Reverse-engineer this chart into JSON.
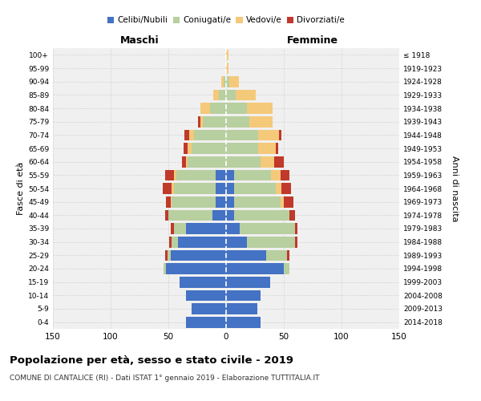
{
  "age_groups": [
    "0-4",
    "5-9",
    "10-14",
    "15-19",
    "20-24",
    "25-29",
    "30-34",
    "35-39",
    "40-44",
    "45-49",
    "50-54",
    "55-59",
    "60-64",
    "65-69",
    "70-74",
    "75-79",
    "80-84",
    "85-89",
    "90-94",
    "95-99",
    "100+"
  ],
  "birth_years": [
    "2014-2018",
    "2009-2013",
    "2004-2008",
    "1999-2003",
    "1994-1998",
    "1989-1993",
    "1984-1988",
    "1979-1983",
    "1974-1978",
    "1969-1973",
    "1964-1968",
    "1959-1963",
    "1954-1958",
    "1949-1953",
    "1944-1948",
    "1939-1943",
    "1934-1938",
    "1929-1933",
    "1924-1928",
    "1919-1923",
    "≤ 1918"
  ],
  "male": {
    "celibi": [
      35,
      30,
      35,
      40,
      52,
      48,
      42,
      35,
      12,
      9,
      9,
      9,
      0,
      0,
      0,
      0,
      0,
      0,
      0,
      0,
      0
    ],
    "coniugati": [
      0,
      0,
      0,
      0,
      2,
      3,
      5,
      10,
      38,
      38,
      36,
      34,
      33,
      30,
      28,
      20,
      14,
      6,
      2,
      0,
      0
    ],
    "vedovi": [
      0,
      0,
      0,
      0,
      0,
      0,
      0,
      0,
      0,
      1,
      2,
      2,
      2,
      3,
      4,
      2,
      8,
      5,
      2,
      0,
      0
    ],
    "divorziati": [
      0,
      0,
      0,
      0,
      0,
      2,
      2,
      3,
      3,
      4,
      8,
      8,
      3,
      4,
      4,
      2,
      0,
      0,
      0,
      0,
      0
    ]
  },
  "female": {
    "nubili": [
      30,
      27,
      30,
      38,
      50,
      35,
      18,
      12,
      7,
      7,
      7,
      7,
      0,
      0,
      0,
      0,
      0,
      0,
      0,
      0,
      0
    ],
    "coniugate": [
      0,
      0,
      0,
      0,
      5,
      18,
      42,
      48,
      48,
      40,
      36,
      32,
      30,
      28,
      28,
      20,
      18,
      8,
      3,
      0,
      0
    ],
    "vedove": [
      0,
      0,
      0,
      0,
      0,
      0,
      0,
      0,
      0,
      3,
      5,
      8,
      12,
      15,
      18,
      20,
      22,
      18,
      8,
      2,
      2
    ],
    "divorziate": [
      0,
      0,
      0,
      0,
      0,
      2,
      2,
      2,
      5,
      8,
      8,
      8,
      8,
      2,
      2,
      0,
      0,
      0,
      0,
      0,
      0
    ]
  },
  "colors": {
    "celibi": "#4472c4",
    "coniugati": "#b8cfa0",
    "vedovi": "#f5c97a",
    "divorziati": "#c0392b"
  },
  "legend_labels": [
    "Celibi/Nubili",
    "Coniugati/e",
    "Vedovi/e",
    "Divorziati/e"
  ],
  "title": "Popolazione per età, sesso e stato civile - 2019",
  "subtitle": "COMUNE DI CANTALICE (RI) - Dati ISTAT 1° gennaio 2019 - Elaborazione TUTTITALIA.IT",
  "label_maschi": "Maschi",
  "label_femmine": "Femmine",
  "ylabel_left": "Fasce di età",
  "ylabel_right": "Anni di nascita",
  "xlim": 150,
  "xticks": [
    -150,
    -100,
    -50,
    0,
    50,
    100,
    150
  ],
  "bg_color": "#f0f0f0",
  "grid_color": "#cccccc"
}
